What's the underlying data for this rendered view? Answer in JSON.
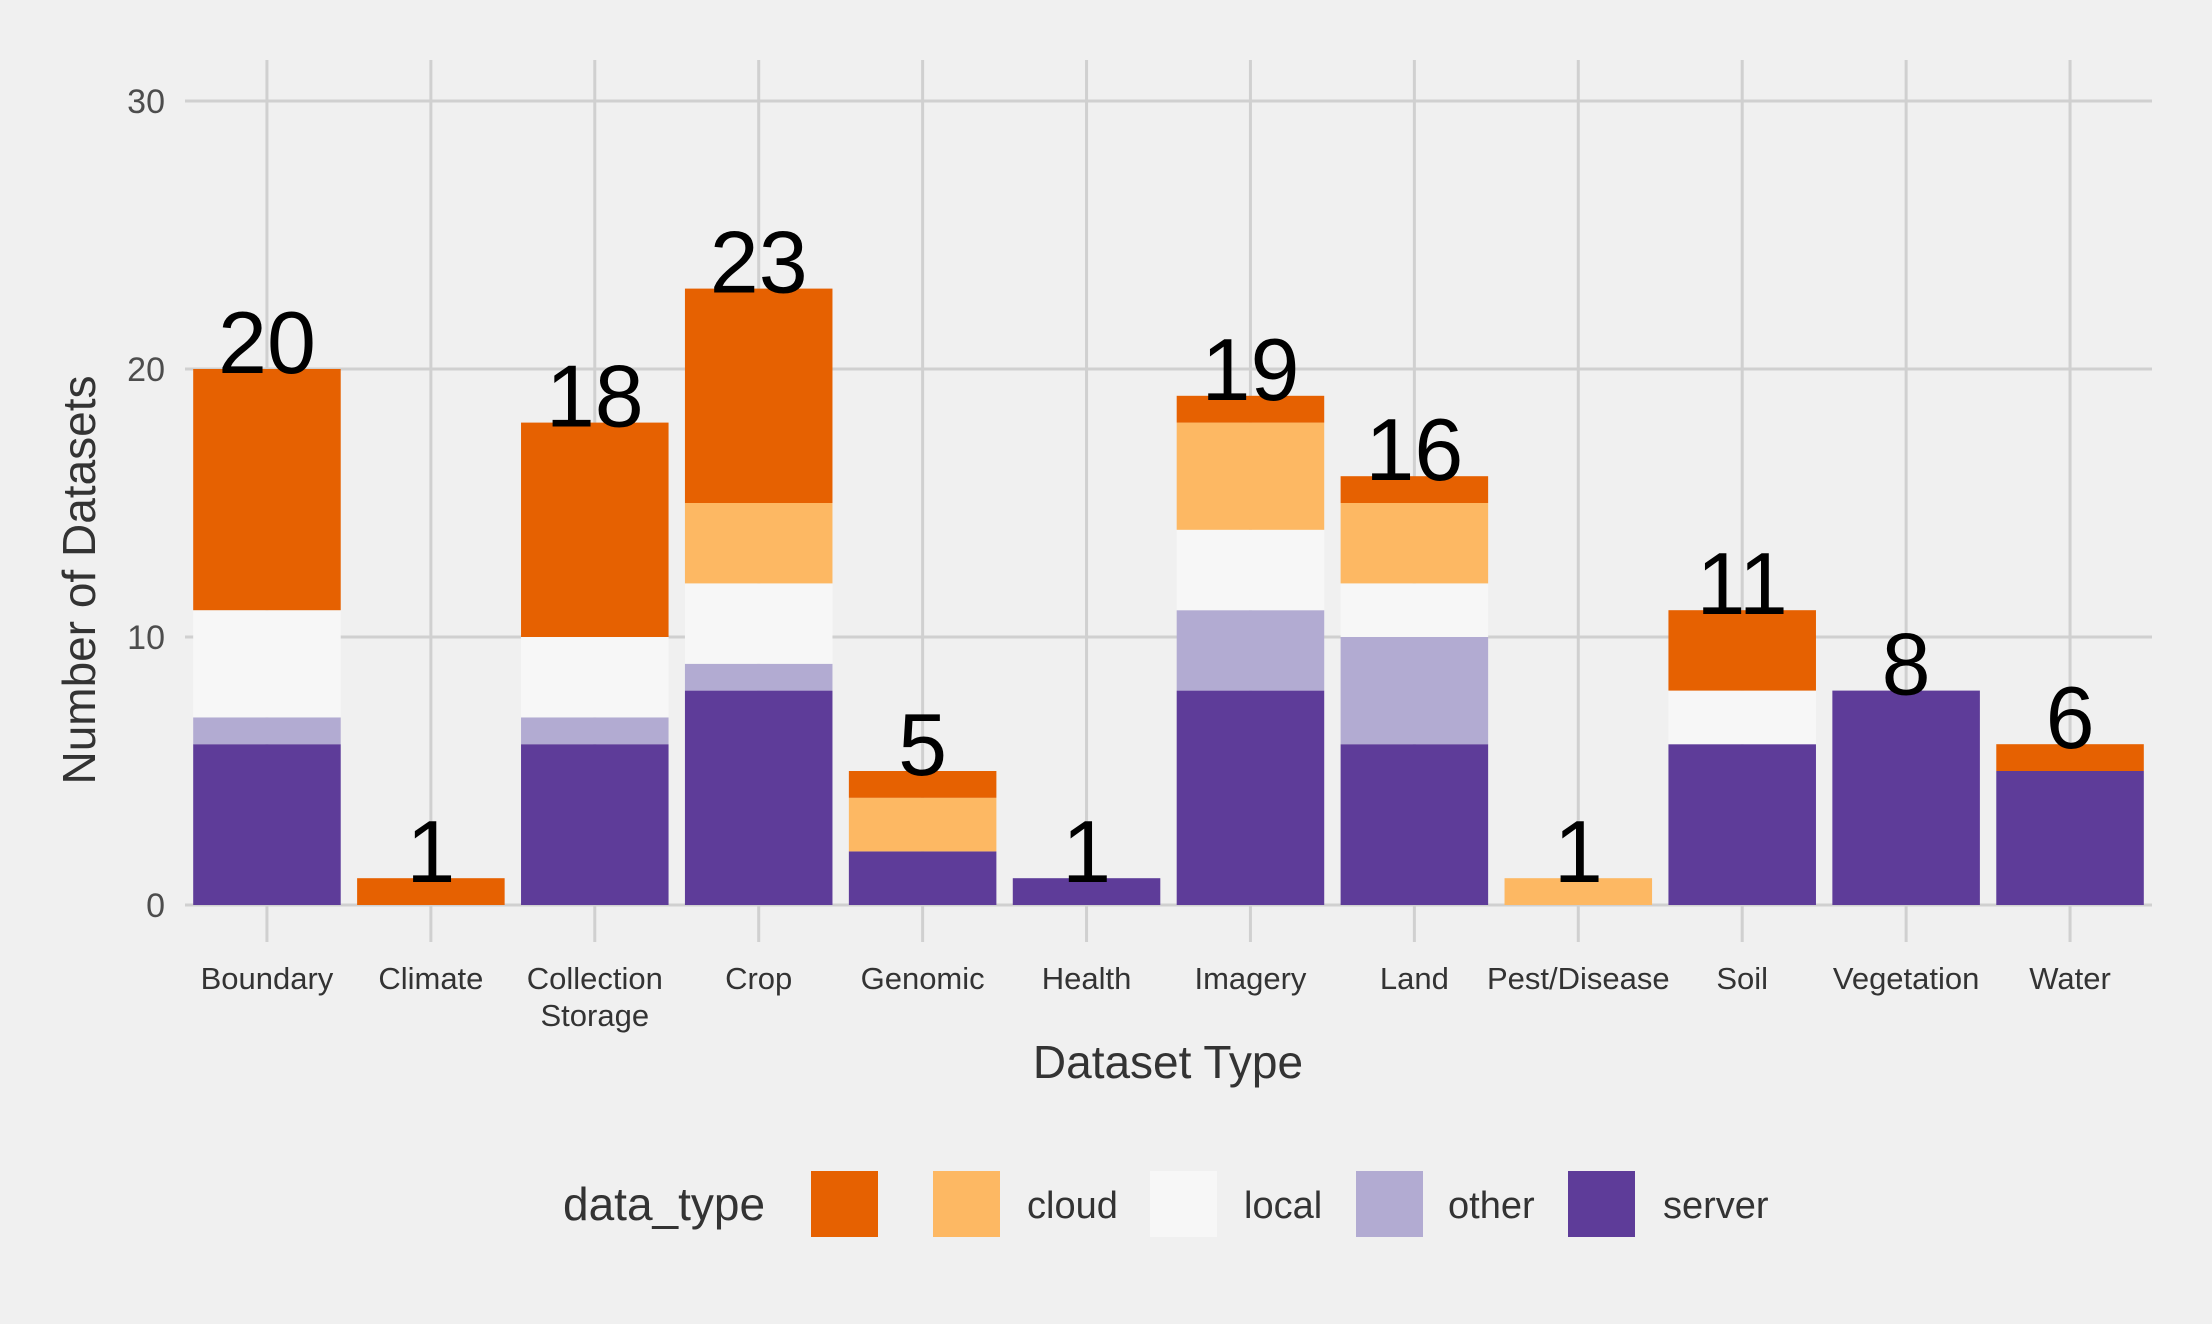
{
  "chart_data": {
    "type": "bar",
    "stacked": true,
    "categories": [
      "Boundary",
      "Climate",
      "Collection\nStorage",
      "Crop",
      "Genomic",
      "Health",
      "Imagery",
      "Land",
      "Pest/Disease",
      "Soil",
      "Vegetation",
      "Water"
    ],
    "series": [
      {
        "name": "",
        "color": "#e66101",
        "values": [
          9,
          1,
          8,
          8,
          1,
          0,
          1,
          1,
          0,
          3,
          0,
          1
        ]
      },
      {
        "name": "cloud",
        "color": "#fdb863",
        "values": [
          0,
          0,
          0,
          3,
          2,
          0,
          4,
          3,
          1,
          0,
          0,
          0
        ]
      },
      {
        "name": "local",
        "color": "#f7f7f7",
        "values": [
          4,
          0,
          3,
          3,
          0,
          0,
          3,
          2,
          0,
          2,
          0,
          0
        ]
      },
      {
        "name": "other",
        "color": "#b2abd2",
        "values": [
          1,
          0,
          1,
          1,
          0,
          0,
          3,
          4,
          0,
          0,
          0,
          0
        ]
      },
      {
        "name": "server",
        "color": "#5e3c99",
        "values": [
          6,
          0,
          6,
          8,
          2,
          1,
          8,
          6,
          0,
          6,
          8,
          5
        ]
      }
    ],
    "totals": [
      20,
      1,
      18,
      23,
      5,
      1,
      19,
      16,
      1,
      11,
      8,
      6
    ],
    "xlabel": "Dataset Type",
    "ylabel": "Number of Datasets",
    "yticks": [
      0,
      10,
      20,
      30
    ],
    "ylim": [
      0,
      31.5
    ],
    "grid": true,
    "legend": {
      "title": "data_type",
      "position": "bottom"
    }
  }
}
